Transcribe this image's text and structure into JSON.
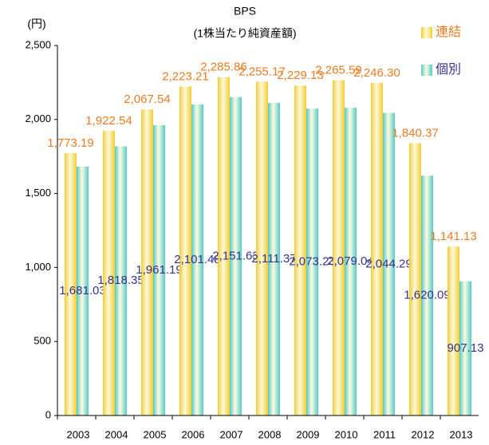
{
  "chart_data": {
    "type": "bar",
    "title": "BPS",
    "subtitle": "(1株当たり純資産額)",
    "y_axis_label": "(円)",
    "categories": [
      "2003",
      "2004",
      "2005",
      "2006",
      "2007",
      "2008",
      "2009",
      "2010",
      "2011",
      "2012",
      "2013"
    ],
    "series": [
      {
        "name": "連結",
        "color": "#f2cc2a",
        "label_color": "#f07a1e",
        "values": [
          1773.19,
          1922.54,
          2067.54,
          2223.21,
          2285.86,
          2255.17,
          2229.13,
          2265.59,
          2246.3,
          1840.37,
          1141.13
        ],
        "value_labels": [
          "1,773.19",
          "1,922.54",
          "2,067.54",
          "2,223.21",
          "2,285.86",
          "2,255.17",
          "2,229.13",
          "2,265.59",
          "2,246.30",
          "1,840.37",
          "1,141.13"
        ]
      },
      {
        "name": "個別",
        "color": "#4ccccc",
        "label_color": "#33339a",
        "values": [
          1681.03,
          1818.35,
          1961.19,
          2101.48,
          2151.63,
          2111.37,
          2073.23,
          2079.04,
          2044.29,
          1620.09,
          907.13
        ],
        "value_labels": [
          "1,681.03",
          "1,818.35",
          "1,961.19",
          "2,101.48",
          "2,151.63",
          "2,111.37",
          "2,073.23",
          "2,079.04",
          "2,044.29",
          "1,620.09",
          "907.13"
        ]
      }
    ],
    "ylim": [
      0,
      2500
    ],
    "yticks": [
      0,
      500,
      {
        "value": 1000,
        "label": "1,000"
      },
      {
        "value": 1500,
        "label": "1,500"
      },
      {
        "value": 2000,
        "label": "2,000"
      },
      {
        "value": 2500,
        "label": "2,500"
      }
    ],
    "grid": false,
    "legend": "top-right"
  }
}
